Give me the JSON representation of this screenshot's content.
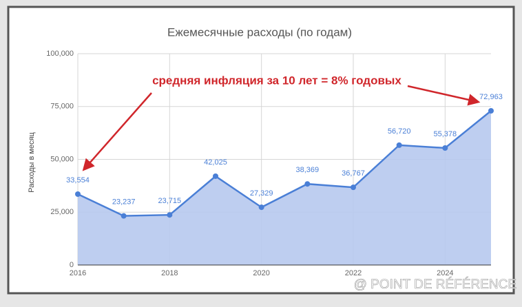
{
  "chart_data": {
    "type": "line",
    "title": "Ежемесячные расходы (по годам)",
    "y_label": "Расходы в месяц",
    "annotation": "средняя инфляция за 10 лет = 8% годовых",
    "x": [
      2016,
      2017,
      2018,
      2019,
      2020,
      2021,
      2022,
      2023,
      2024,
      2025
    ],
    "values": [
      33554,
      23237,
      23715,
      42025,
      27329,
      38369,
      36767,
      56720,
      55378,
      72963
    ],
    "value_labels": [
      "33,554",
      "23,237",
      "23,715",
      "42,025",
      "27,329",
      "38,369",
      "36,767",
      "56,720",
      "55,378",
      "72,963"
    ],
    "color": "#4a7fd6",
    "fill_color": "#b7c9ee",
    "xlim": [
      2016,
      2025
    ],
    "xticks": [
      2016,
      2018,
      2020,
      2022,
      2024
    ],
    "ylim": [
      0,
      100000
    ],
    "yticks": [
      0,
      {
        "value": 25000,
        "label": "25,000"
      },
      {
        "value": 50000,
        "label": "50,000"
      },
      {
        "value": 75000,
        "label": "75,000"
      },
      {
        "value": 100000,
        "label": "100,000"
      }
    ],
    "grid": true
  },
  "watermark": "@ POINT DE RÉFÉRENCE"
}
